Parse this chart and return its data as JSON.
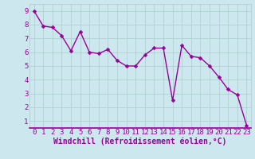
{
  "x": [
    0,
    1,
    2,
    3,
    4,
    5,
    6,
    7,
    8,
    9,
    10,
    11,
    12,
    13,
    14,
    15,
    16,
    17,
    18,
    19,
    20,
    21,
    22,
    23
  ],
  "y": [
    9.0,
    7.9,
    7.8,
    7.2,
    6.1,
    7.5,
    6.0,
    5.9,
    6.2,
    5.4,
    5.0,
    5.0,
    5.8,
    6.3,
    6.3,
    2.5,
    6.5,
    5.7,
    5.6,
    5.0,
    4.2,
    3.3,
    2.9,
    0.7
  ],
  "line_color": "#990099",
  "marker_color": "#990099",
  "bg_color": "#cce8ee",
  "grid_color": "#aacccc",
  "xlabel": "Windchill (Refroidissement éolien,°C)",
  "ylabel_ticks": [
    1,
    2,
    3,
    4,
    5,
    6,
    7,
    8,
    9
  ],
  "xlim": [
    -0.5,
    23.5
  ],
  "ylim": [
    0.5,
    9.5
  ],
  "xlabel_color": "#990099",
  "tick_color": "#990099",
  "axis_line_color": "#990099",
  "xlabel_fontsize": 7.0,
  "tick_fontsize": 6.5,
  "line_width": 1.0,
  "marker_size": 2.5
}
